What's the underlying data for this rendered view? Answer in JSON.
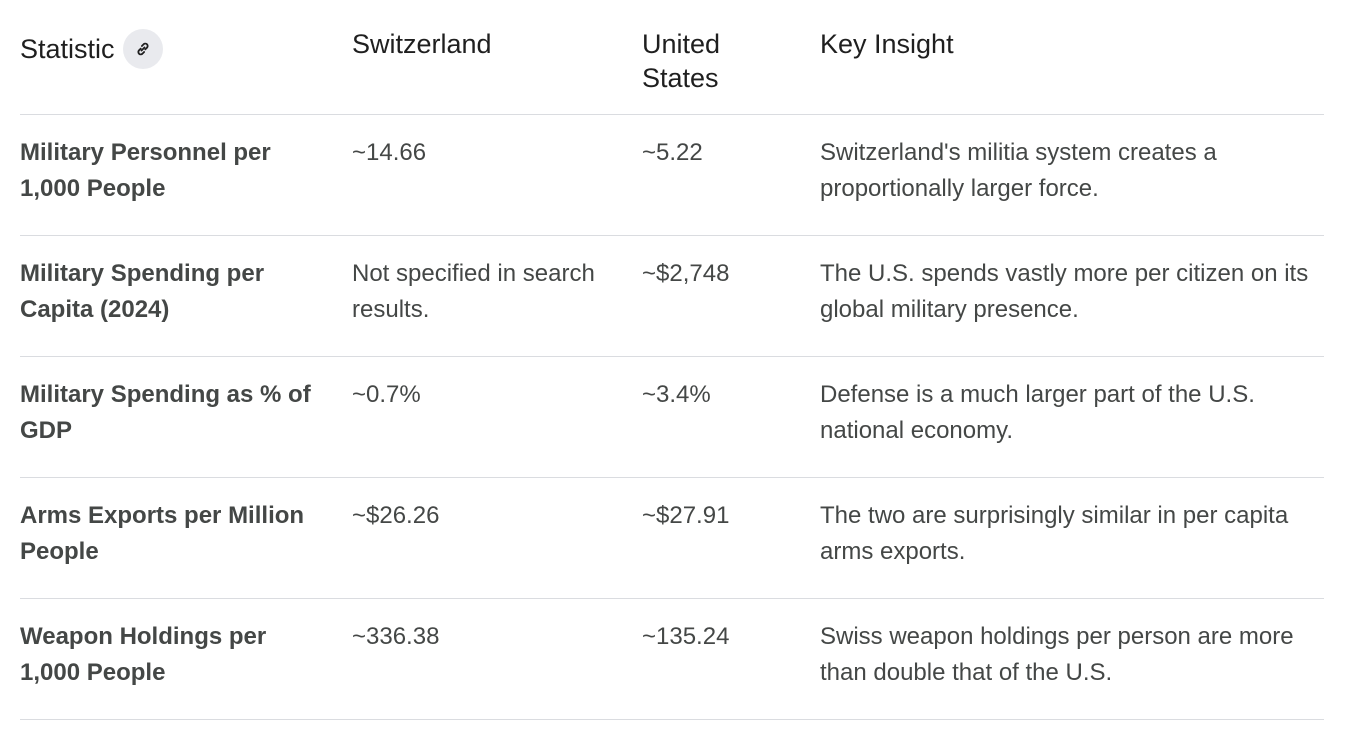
{
  "table": {
    "headers": {
      "statistic": "Statistic",
      "switzerland": "Switzerland",
      "united_states": "United States",
      "key_insight": "Key Insight"
    },
    "rows": [
      {
        "statistic": "Military Personnel per 1,000 People",
        "switzerland": "~14.66",
        "united_states": "~5.22",
        "key_insight": "Switzerland's militia system creates a proportionally larger force."
      },
      {
        "statistic": "Military Spending per Capita (2024)",
        "switzerland": "Not specified in search results.",
        "united_states": "~$2,748",
        "key_insight": "The U.S. spends vastly more per citizen on its global military presence."
      },
      {
        "statistic": "Military Spending as % of GDP",
        "switzerland": "~0.7%",
        "united_states": "~3.4%",
        "key_insight": "Defense is a much larger part of the U.S. national economy."
      },
      {
        "statistic": "Arms Exports per Million People",
        "switzerland": "~$26.26",
        "united_states": "~$27.91",
        "key_insight": "The two are surprisingly similar in per capita arms exports."
      },
      {
        "statistic": "Weapon Holdings per 1,000 People",
        "switzerland": "~336.38",
        "united_states": "~135.24",
        "key_insight": "Swiss weapon holdings per person are more than double that of the U.S."
      }
    ]
  },
  "icons": {
    "link": "link-icon"
  }
}
